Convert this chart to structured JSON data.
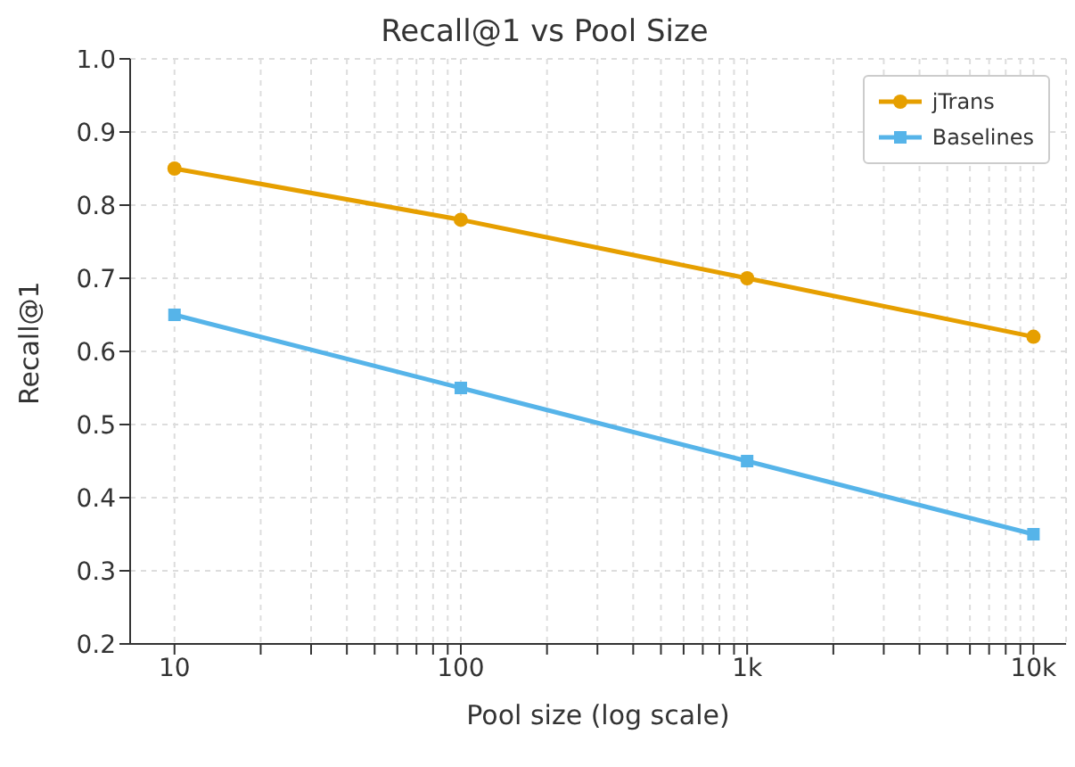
{
  "chart_data": {
    "type": "line",
    "title": "Recall@1 vs Pool Size",
    "xlabel": "Pool size (log scale)",
    "ylabel": "Recall@1",
    "x": [
      10,
      100,
      1000,
      10000
    ],
    "series": [
      {
        "name": "jTrans",
        "color": "#e69f00",
        "values": [
          0.85,
          0.78,
          0.7,
          0.62
        ],
        "marker": "circle"
      },
      {
        "name": "Baselines",
        "color": "#56b4e9",
        "values": [
          0.65,
          0.55,
          0.45,
          0.35
        ],
        "marker": "square"
      }
    ],
    "log": "x",
    "xlim": [
      7,
      13000
    ],
    "xticks": [
      10,
      {
        "value": 20,
        "label": null
      },
      {
        "value": 30,
        "label": null
      },
      {
        "value": 40,
        "label": null
      },
      {
        "value": 50,
        "label": null
      },
      {
        "value": 60,
        "label": null
      },
      {
        "value": 70,
        "label": null
      },
      {
        "value": 80,
        "label": null
      },
      {
        "value": 90,
        "label": null
      },
      100,
      {
        "value": 200,
        "label": null
      },
      {
        "value": 300,
        "label": null
      },
      {
        "value": 400,
        "label": null
      },
      {
        "value": 500,
        "label": null
      },
      {
        "value": 600,
        "label": null
      },
      {
        "value": 700,
        "label": null
      },
      {
        "value": 800,
        "label": null
      },
      {
        "value": 900,
        "label": null
      },
      {
        "value": 1000,
        "label": "1k"
      },
      {
        "value": 2000,
        "label": null
      },
      {
        "value": 3000,
        "label": null
      },
      {
        "value": 4000,
        "label": null
      },
      {
        "value": 5000,
        "label": null
      },
      {
        "value": 6000,
        "label": null
      },
      {
        "value": 7000,
        "label": null
      },
      {
        "value": 8000,
        "label": null
      },
      {
        "value": 9000,
        "label": null
      },
      {
        "value": 10000,
        "label": "10k"
      }
    ],
    "ylim": [
      0.2,
      1.0
    ],
    "yticks": [
      0.2,
      0.3,
      0.4,
      0.5,
      0.6,
      0.7,
      0.8,
      0.9,
      {
        "value": 1.0,
        "label": "1.0"
      }
    ],
    "grid": true,
    "legend": "top right",
    "line_style": "solid"
  }
}
